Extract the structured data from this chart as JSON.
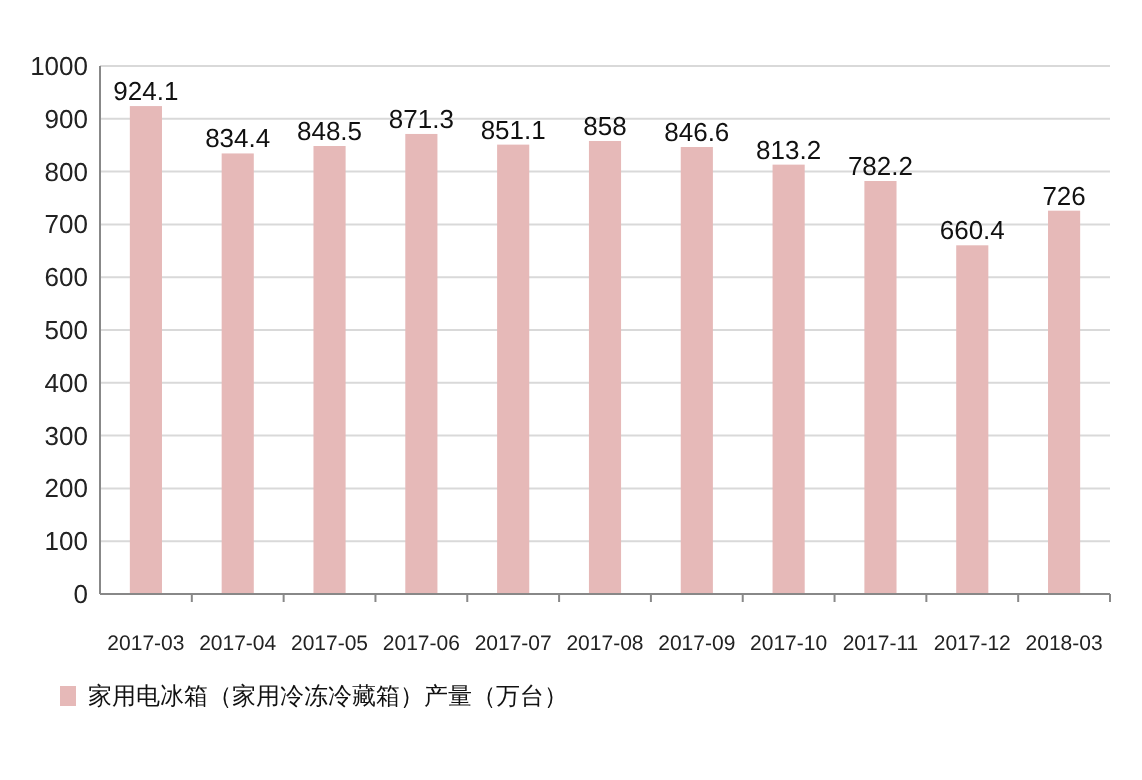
{
  "chart_data": {
    "type": "bar",
    "categories": [
      "2017-03",
      "2017-04",
      "2017-05",
      "2017-06",
      "2017-07",
      "2017-08",
      "2017-09",
      "2017-10",
      "2017-11",
      "2017-12",
      "2018-03"
    ],
    "series": [
      {
        "name": "家用电冰箱（家用冷冻冷藏箱）产量（万台）",
        "color": "#e6b9b8",
        "values": [
          924.1,
          834.4,
          848.5,
          871.3,
          851.1,
          858,
          846.6,
          813.2,
          782.2,
          660.4,
          726
        ]
      }
    ],
    "ylim": [
      0,
      1000
    ],
    "yticks": [
      0,
      100,
      200,
      300,
      400,
      500,
      600,
      700,
      800,
      900,
      1000
    ],
    "grid": "y",
    "legend": "bottom",
    "data_labels": true
  }
}
